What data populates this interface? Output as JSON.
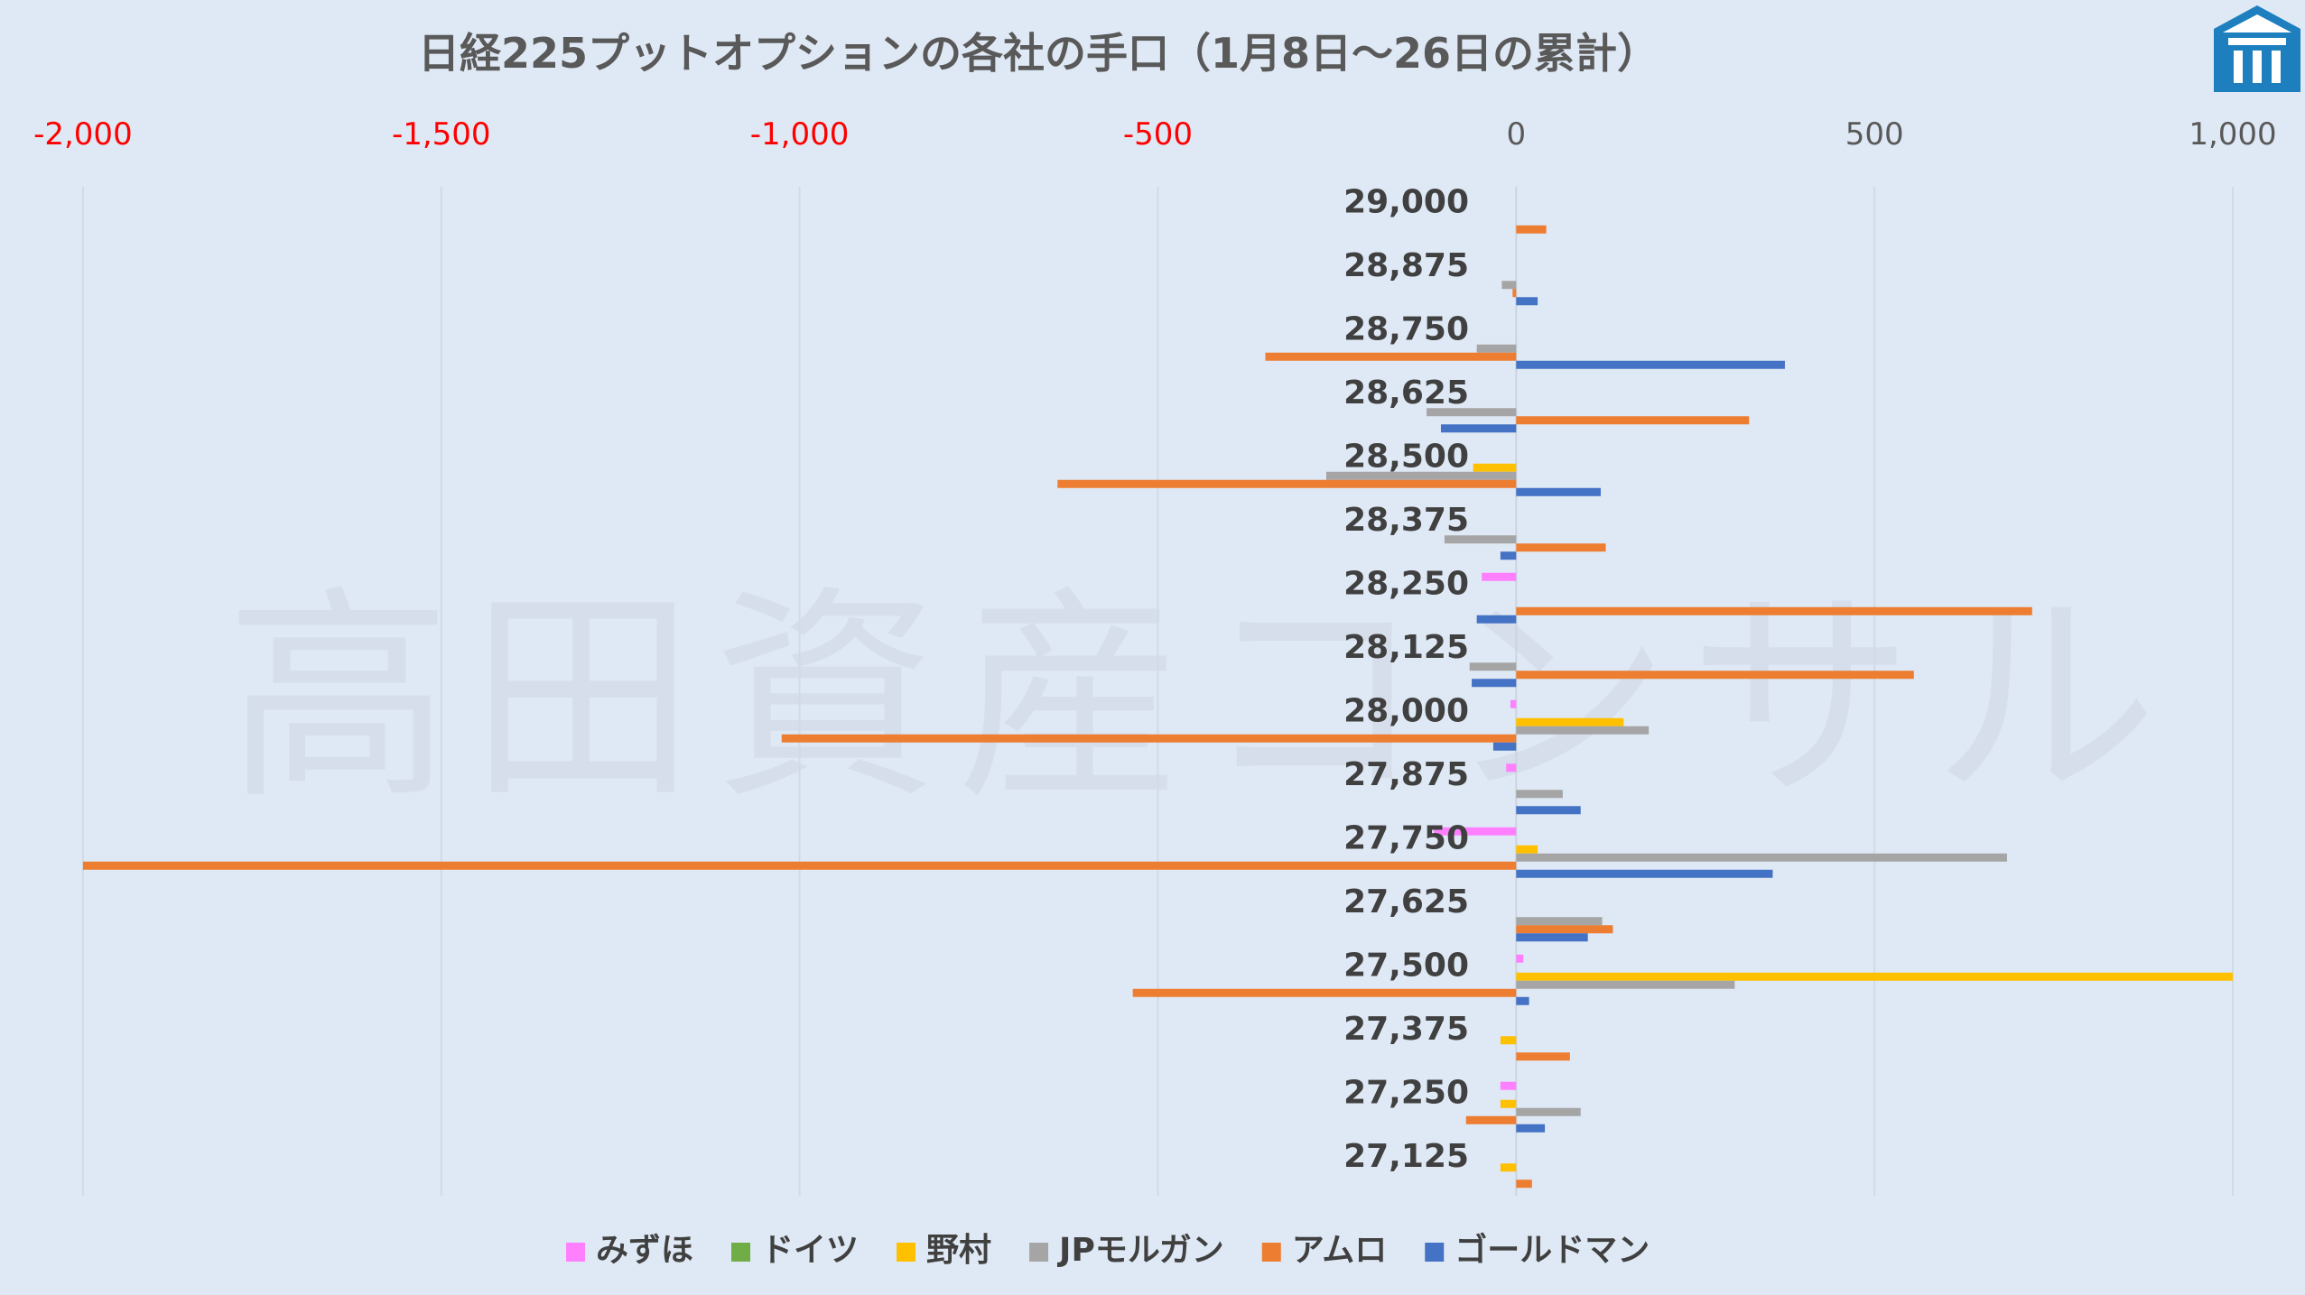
{
  "logo": {
    "name": "company-logo-icon",
    "color": "#1d7fbe"
  },
  "watermark": {
    "text": "高田資産コンサル"
  },
  "chart_data": {
    "type": "bar",
    "orientation": "horizontal",
    "title": "日経225プットオプションの各社の手口（1月8日～26日の累計）",
    "xlabel": "",
    "ylabel": "",
    "xlim": [
      -2000,
      1000
    ],
    "xticks": [
      -2000,
      -1500,
      -1000,
      -500,
      0,
      500,
      1000
    ],
    "xtick_labels": [
      "-2,000",
      "-1,500",
      "-1,000",
      "-500",
      "0",
      "500",
      "1,000"
    ],
    "negative_tick_color": "#ff0000",
    "positive_tick_color": "#595959",
    "axis_position": "top",
    "grid": true,
    "legend_position": "bottom",
    "categories": [
      "29,000",
      "28,875",
      "28,750",
      "28,625",
      "28,500",
      "28,375",
      "28,250",
      "28,125",
      "28,000",
      "27,875",
      "27,750",
      "27,625",
      "27,500",
      "27,375",
      "27,250",
      "27,125"
    ],
    "series": [
      {
        "name": "みずほ",
        "color": "#ff80ff",
        "values": [
          0,
          0,
          0,
          0,
          0,
          0,
          -48,
          0,
          -8,
          -14,
          -115,
          0,
          10,
          0,
          -22,
          0
        ]
      },
      {
        "name": "ドイツ",
        "color": "#70ad47",
        "values": [
          0,
          0,
          0,
          0,
          0,
          0,
          0,
          0,
          0,
          0,
          0,
          0,
          0,
          0,
          0,
          0
        ]
      },
      {
        "name": "野村",
        "color": "#ffc000",
        "values": [
          0,
          0,
          0,
          0,
          -60,
          0,
          0,
          0,
          150,
          0,
          30,
          0,
          1000,
          -22,
          -22,
          -22
        ]
      },
      {
        "name": "JPモルガン",
        "color": "#a5a5a5",
        "values": [
          0,
          -20,
          -55,
          -125,
          -265,
          -100,
          0,
          -65,
          185,
          65,
          685,
          120,
          305,
          0,
          90,
          0
        ]
      },
      {
        "name": "アムロ",
        "color": "#ed7d31",
        "values": [
          42,
          -5,
          -350,
          325,
          -640,
          125,
          720,
          555,
          -1025,
          0,
          -2000,
          135,
          -535,
          75,
          -70,
          22
        ]
      },
      {
        "name": "ゴールドマン",
        "color": "#4472c4",
        "values": [
          0,
          30,
          375,
          -105,
          118,
          -22,
          -55,
          -62,
          -32,
          90,
          358,
          100,
          18,
          0,
          40,
          0
        ]
      }
    ]
  }
}
